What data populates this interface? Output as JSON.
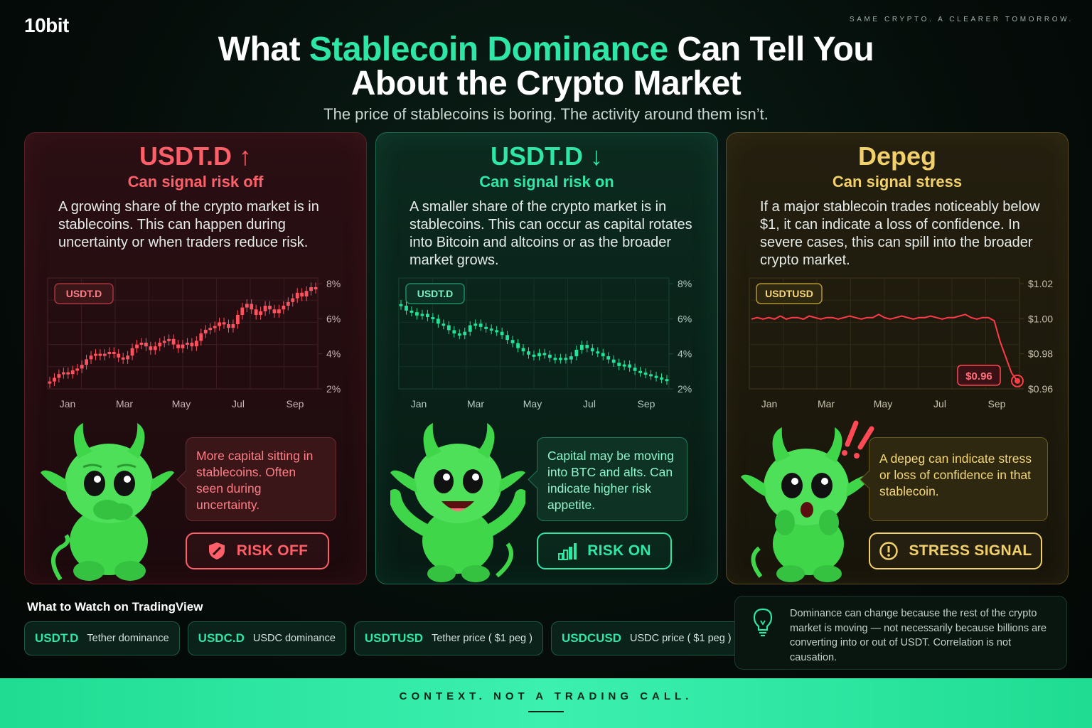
{
  "brand": {
    "logo": "10bit",
    "tagline": "SAME CRYPTO. A CLEARER TOMORROW."
  },
  "header": {
    "title_pre": "What ",
    "title_accent": "Stablecoin Dominance",
    "title_post": " Can Tell You",
    "title_line2": "About the Crypto Market",
    "subtitle": "The price of stablecoins is boring. The activity around them isn’t."
  },
  "colors": {
    "accent": "#2ee6a6",
    "risk_off": "#ff5f68",
    "risk_on": "#2ee6a6",
    "stress": "#f2d16b"
  },
  "cards": [
    {
      "heading": "USDT.D ↑",
      "subheading": "Can signal risk off",
      "body": "A growing share of the crypto market is in stablecoins. This can happen during uncertainty or when traders reduce risk.",
      "bubble": "More capital sitting in stablecoins. Often seen during uncertainty.",
      "pill_label": "RISK OFF",
      "pill_icon": "shield-icon"
    },
    {
      "heading": "USDT.D ↓",
      "subheading": "Can signal risk on",
      "body": "A smaller share of the crypto market is in stablecoins. This can occur as capital rotates into Bitcoin and altcoins or as the broader market grows.",
      "bubble": "Capital may be moving into BTC and alts. Can indicate higher risk appetite.",
      "pill_label": "RISK ON",
      "pill_icon": "bar-chart-icon"
    },
    {
      "heading": "Depeg",
      "subheading": "Can signal stress",
      "body": "If a major stablecoin trades noticeably below $1, it can indicate a loss of confidence. In severe cases, this can spill into the broader crypto market.",
      "bubble": "A depeg can indicate stress or loss of confidence in that stablecoin.",
      "pill_label": "STRESS SIGNAL",
      "pill_icon": "alert-circle-icon"
    }
  ],
  "chart_data": [
    {
      "type": "candlestick",
      "badge": "USDT.D",
      "x_tick_labels": [
        "Jan",
        "Mar",
        "May",
        "Jul",
        "Sep"
      ],
      "y_tick_labels": [
        "8%",
        "6%",
        "4%",
        "2%"
      ],
      "ylim": [
        2,
        8
      ],
      "trend": "rising",
      "values": [
        2.4,
        2.6,
        2.8,
        2.9,
        2.8,
        3.0,
        3.1,
        3.3,
        3.6,
        3.8,
        3.9,
        3.8,
        3.9,
        4.0,
        3.9,
        3.7,
        3.6,
        3.8,
        4.2,
        4.4,
        4.5,
        4.3,
        4.1,
        4.3,
        4.5,
        4.6,
        4.7,
        4.4,
        4.2,
        4.4,
        4.5,
        4.3,
        4.6,
        5.0,
        5.2,
        5.3,
        5.4,
        5.6,
        5.5,
        5.3,
        5.5,
        6.0,
        6.4,
        6.6,
        6.3,
        6.0,
        6.2,
        6.5,
        6.3,
        6.1,
        6.3,
        6.5,
        6.7,
        6.9,
        7.2,
        7.0,
        7.3,
        7.5,
        7.4
      ]
    },
    {
      "type": "candlestick",
      "badge": "USDT.D",
      "x_tick_labels": [
        "Jan",
        "Mar",
        "May",
        "Jul",
        "Sep"
      ],
      "y_tick_labels": [
        "8%",
        "6%",
        "4%",
        "2%"
      ],
      "ylim": [
        2,
        8.8
      ],
      "trend": "falling",
      "values": [
        7.1,
        6.8,
        6.7,
        6.5,
        6.6,
        6.4,
        6.3,
        6.0,
        5.9,
        5.6,
        5.4,
        5.3,
        5.5,
        5.9,
        6.0,
        5.8,
        5.7,
        5.6,
        5.5,
        5.3,
        5.0,
        4.8,
        4.5,
        4.3,
        4.1,
        4.0,
        4.2,
        4.1,
        3.9,
        3.8,
        3.9,
        3.8,
        4.0,
        4.4,
        4.7,
        4.5,
        4.3,
        4.2,
        4.0,
        3.8,
        3.6,
        3.4,
        3.5,
        3.3,
        3.1,
        3.0,
        2.9,
        2.8,
        2.7,
        2.6,
        2.5
      ]
    },
    {
      "type": "line",
      "badge": "USDTUSD",
      "x_tick_labels": [
        "Jan",
        "Mar",
        "May",
        "Jul",
        "Sep"
      ],
      "y_tick_labels": [
        "$1.02",
        "$1.00",
        "$0.98",
        "$0.96"
      ],
      "ylim": [
        0.955,
        1.025
      ],
      "annotation": "$0.96",
      "values": [
        0.999,
        1.0,
        0.999,
        1.0,
        0.999,
        1.001,
        0.999,
        1.0,
        1.0,
        0.999,
        1.001,
        1.0,
        0.999,
        1.0,
        1.0,
        0.999,
        1.0,
        1.001,
        1.0,
        0.999,
        1.0,
        1.0,
        1.002,
        1.0,
        0.999,
        1.0,
        1.001,
        1.0,
        0.999,
        1.0,
        1.0,
        1.001,
        1.0,
        0.999,
        1.0,
        1.0,
        1.001,
        1.002,
        1.0,
        0.999,
        1.0,
        1.0,
        0.998,
        0.985,
        0.975,
        0.965,
        0.96
      ]
    }
  ],
  "watch": {
    "title": "What to Watch on TradingView",
    "tags": [
      {
        "code": "USDT.D",
        "desc": "Tether dominance"
      },
      {
        "code": "USDC.D",
        "desc": "USDC dominance"
      },
      {
        "code": "USDTUSD",
        "desc": "Tether price ( $1 peg )"
      },
      {
        "code": "USDCUSD",
        "desc": "USDC price ( $1 peg )"
      }
    ]
  },
  "note": {
    "icon": "lightbulb-icon",
    "text": "Dominance can change because the rest of the crypto market is moving — not necessarily because billions are converting into or out of USDT. Correlation is not causation."
  },
  "footer": {
    "text": "CONTEXT. NOT A TRADING CALL."
  }
}
